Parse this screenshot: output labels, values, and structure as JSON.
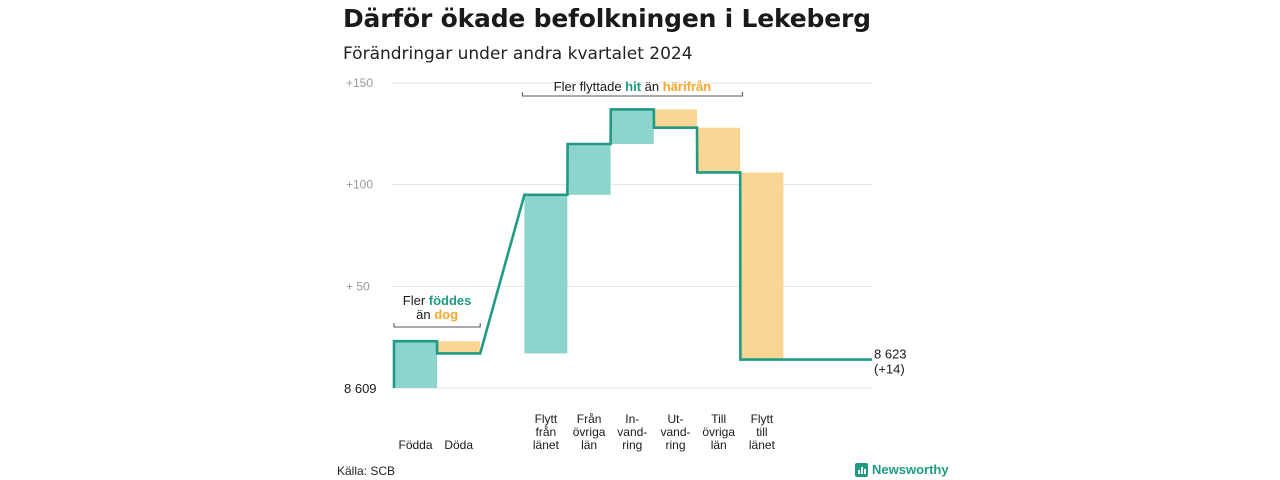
{
  "title": "Därför ökade befolkningen i Lekeberg",
  "subtitle": "Förändringar under andra kvartalet 2024",
  "source": "Källa: SCB",
  "brand": "Newsworthy",
  "colors": {
    "increase": "#8dd5cc",
    "decrease": "#fad694",
    "line": "#1f9b85",
    "grid": "#e4e4e4",
    "hit": "#1f9b85",
    "harifran": "#f2a92c"
  },
  "chart_data": {
    "type": "waterfall",
    "start_value": 8609,
    "start_label": "8  609",
    "end_label": "8 623",
    "end_change_label": "(+14)",
    "y_ticks": [
      "+150",
      "+100",
      "+  50"
    ],
    "y_tick_values": [
      150,
      100,
      50
    ],
    "ylim": [
      0,
      150
    ],
    "categories": [
      "Födda",
      "Döda",
      "Flytt från länet",
      "Från övriga län",
      "In-vand-ring",
      "Ut-vand-ring",
      "Till övriga län",
      "Flytt till länet"
    ],
    "category_lines": [
      [
        "Födda"
      ],
      [
        "Döda"
      ],
      [
        "Flytt",
        "från",
        "länet"
      ],
      [
        "Från",
        "övriga",
        "län"
      ],
      [
        "In-",
        "vand-",
        "ring"
      ],
      [
        "Ut-",
        "vand-",
        "ring"
      ],
      [
        "Till",
        "övriga",
        "län"
      ],
      [
        "Flytt",
        "till",
        "länet"
      ]
    ],
    "values": [
      23,
      -6,
      78,
      25,
      17,
      -9,
      -22,
      -92
    ],
    "annotations": {
      "births": {
        "line1": "Fler",
        "word1": "föddes",
        "line2": "än",
        "word2": "dog"
      },
      "moves": {
        "prefix": "Fler flyttade",
        "word1": "hit",
        "middle": "än",
        "word2": "härifrån"
      }
    }
  }
}
